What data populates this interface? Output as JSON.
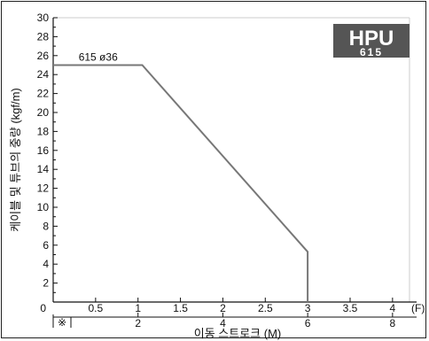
{
  "chart_data": {
    "type": "line",
    "title": "",
    "ylabel": "케이블 및 튜브의 중량 (kgf/m)",
    "xlabel": "이동 스트로크 (M)",
    "x_unit_top": "(F)",
    "note_symbol": "※",
    "badge": {
      "line1": "HPU",
      "line2": "615",
      "bg_color": "#555555"
    },
    "ylim": [
      0,
      30
    ],
    "yticks": [
      0,
      2,
      4,
      6,
      8,
      10,
      12,
      14,
      16,
      18,
      20,
      22,
      24,
      26,
      28,
      30
    ],
    "xlim_f": [
      0,
      4.2
    ],
    "xticks_f": [
      {
        "v": 0.5,
        "label": "0.5"
      },
      {
        "v": 1,
        "label": "1"
      },
      {
        "v": 1.5,
        "label": "1.5"
      },
      {
        "v": 2,
        "label": "2"
      },
      {
        "v": 2.5,
        "label": "2.5"
      },
      {
        "v": 3,
        "label": "3"
      },
      {
        "v": 3.5,
        "label": "3.5"
      },
      {
        "v": 4,
        "label": "4"
      }
    ],
    "zero_label": "0",
    "xticks_m": [
      {
        "v_m": 2,
        "label": "2"
      },
      {
        "v_m": 4,
        "label": "4"
      },
      {
        "v_m": 6,
        "label": "6"
      },
      {
        "v_m": 8,
        "label": "8"
      }
    ],
    "series": [
      {
        "name": "615 ø36",
        "color": "#777777",
        "points": [
          [
            0,
            25
          ],
          [
            1.05,
            25
          ],
          [
            3.0,
            5.3
          ],
          [
            3.0,
            0
          ]
        ]
      }
    ]
  }
}
